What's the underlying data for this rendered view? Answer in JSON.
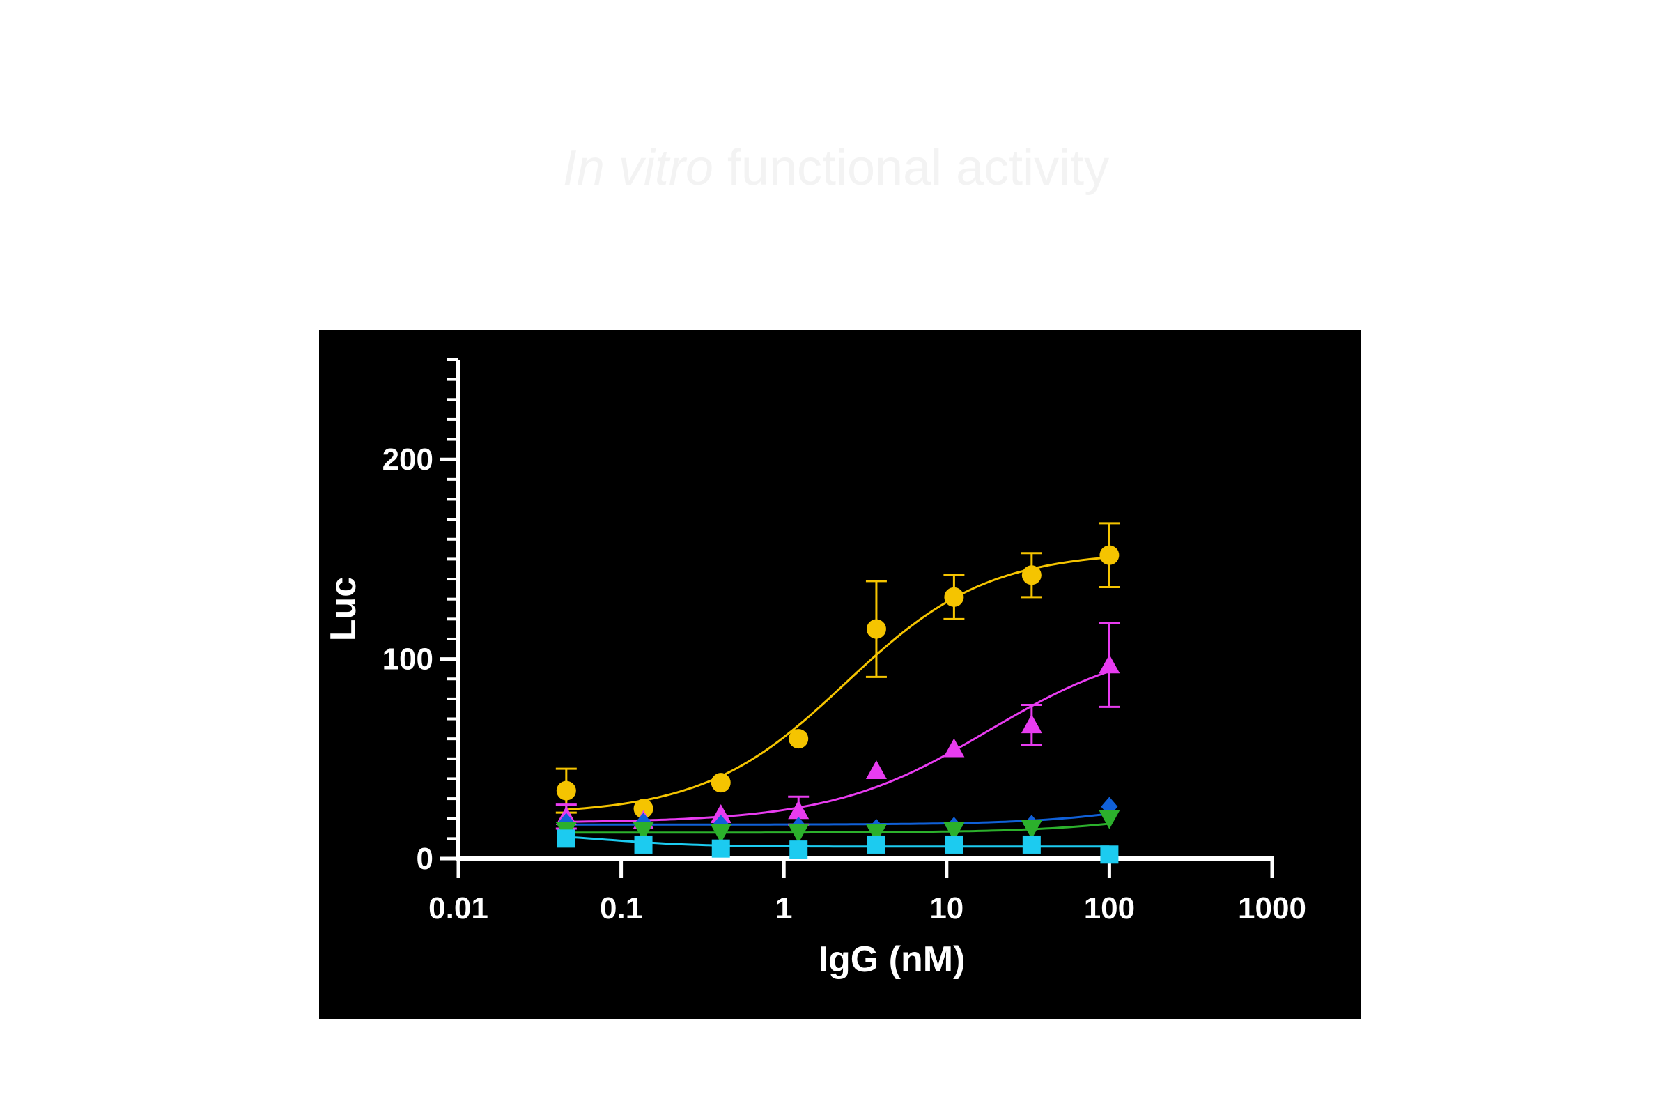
{
  "title": {
    "italic": "In vitro",
    "rest": " functional activity"
  },
  "chart_data": {
    "type": "scatter",
    "xscale": "log",
    "xlabel": "IgG (nM)",
    "ylabel": "Luc",
    "xlim": [
      0.01,
      1000
    ],
    "ylim": [
      0,
      250
    ],
    "xticks": [
      "0.01",
      "0.1",
      "1",
      "10",
      "100",
      "1000"
    ],
    "yticks": [
      "0",
      "100",
      "200"
    ],
    "legend": "none",
    "series": [
      {
        "color": "#f5c400",
        "marker": "circle",
        "x": [
          0.046,
          0.137,
          0.41,
          1.23,
          3.7,
          11.1,
          33.3,
          100
        ],
        "y": [
          34,
          25,
          38,
          60,
          115,
          131,
          142,
          152
        ],
        "err": [
          11,
          0,
          0,
          0,
          24,
          11,
          11,
          16
        ],
        "fit": {
          "bottom": 22,
          "top": 154,
          "ec50": 2.4,
          "hill": 1.0
        }
      },
      {
        "color": "#e83cf0",
        "marker": "triangle-up",
        "x": [
          0.046,
          0.137,
          0.41,
          1.23,
          3.7,
          11.1,
          33.3,
          100
        ],
        "y": [
          21,
          19,
          22,
          24,
          44,
          55,
          67,
          97
        ],
        "err": [
          6,
          0,
          0,
          7,
          0,
          0,
          10,
          21
        ],
        "fit": {
          "bottom": 18,
          "top": 110,
          "ec50": 18,
          "hill": 0.9
        }
      },
      {
        "color": "#1060d8",
        "marker": "diamond",
        "x": [
          0.046,
          0.137,
          0.41,
          1.23,
          3.7,
          11.1,
          33.3,
          100
        ],
        "y": [
          18,
          18,
          17,
          16,
          15,
          16,
          17,
          26
        ],
        "err": [
          0,
          0,
          0,
          0,
          0,
          0,
          0,
          0
        ],
        "fit": {
          "bottom": 17,
          "top": 50,
          "ec50": 500,
          "hill": 1.0
        }
      },
      {
        "color": "#2cb02c",
        "marker": "triangle-down",
        "x": [
          0.046,
          0.137,
          0.41,
          1.23,
          3.7,
          11.1,
          33.3,
          100
        ],
        "y": [
          14,
          14,
          13,
          13,
          13,
          14,
          15,
          20
        ],
        "err": [
          0,
          0,
          0,
          0,
          0,
          0,
          0,
          0
        ],
        "fit": {
          "bottom": 13,
          "top": 40,
          "ec50": 500,
          "hill": 1.0
        }
      },
      {
        "color": "#1ccbf0",
        "marker": "square",
        "x": [
          0.046,
          0.137,
          0.41,
          1.23,
          3.7,
          11.1,
          33.3,
          100
        ],
        "y": [
          10,
          7,
          5,
          4.5,
          7,
          7,
          7,
          2
        ],
        "err": [
          0,
          0,
          0,
          0,
          0,
          0,
          0,
          0
        ],
        "fit": {
          "bottom": 6,
          "top": 13,
          "ec50": 0.08,
          "hill": -1.5
        }
      }
    ]
  }
}
